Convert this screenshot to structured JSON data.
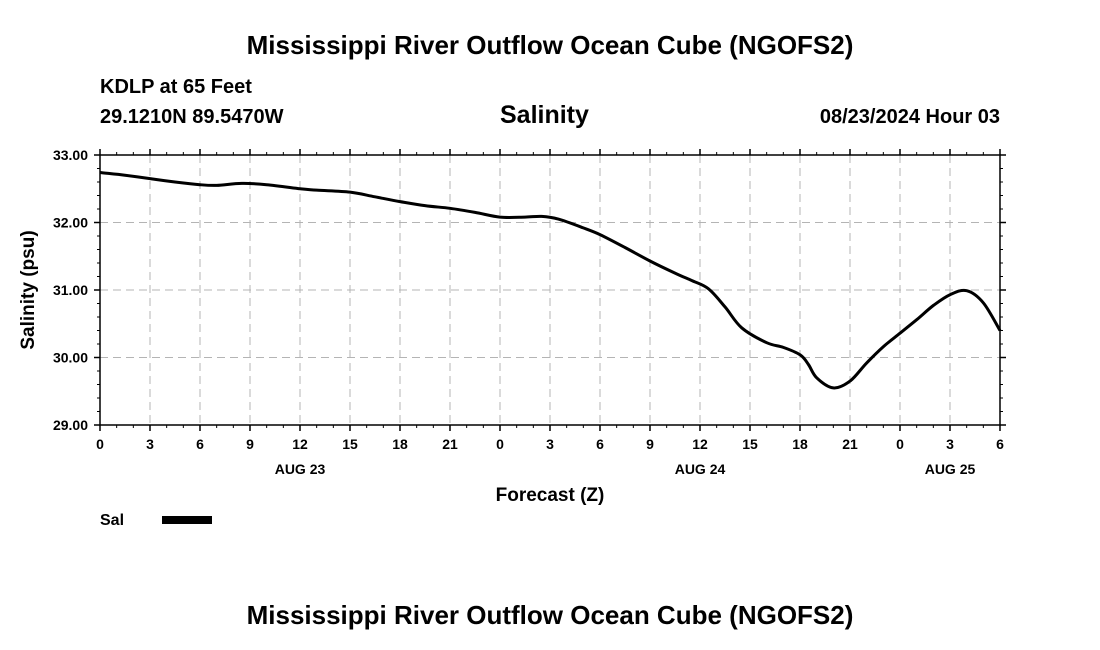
{
  "header": {
    "title": "Mississippi River Outflow Ocean Cube (NGOFS2)",
    "station": "KDLP at 65 Feet",
    "coords": "29.1210N  89.5470W",
    "date": "08/23/2024 Hour 03"
  },
  "chart_data": {
    "type": "line",
    "title": "Salinity",
    "xlabel": "Forecast (Z)",
    "ylabel": "Salinity (psu)",
    "xlim": [
      0,
      54
    ],
    "ylim": [
      29.0,
      33.0
    ],
    "y_ticks": [
      "29.00",
      "30.00",
      "31.00",
      "32.00",
      "33.00"
    ],
    "x_ticks": [
      "0",
      "3",
      "6",
      "9",
      "12",
      "15",
      "18",
      "21",
      "0",
      "3",
      "6",
      "9",
      "12",
      "15",
      "18",
      "21",
      "0",
      "3",
      "6"
    ],
    "date_labels": [
      {
        "label": "AUG 23",
        "hour": 12
      },
      {
        "label": "AUG 24",
        "hour": 36
      },
      {
        "label": "AUG 25",
        "hour": 51
      }
    ],
    "grid": true,
    "legend_position": "bottom-left",
    "series": [
      {
        "name": "Sal",
        "color": "#000000",
        "x": [
          0,
          1.5,
          3,
          4.5,
          6,
          7,
          8.5,
          10,
          12,
          13,
          15,
          16.5,
          18,
          19.5,
          21,
          22.5,
          24,
          25.5,
          26.5,
          27.5,
          29,
          30,
          31.5,
          33,
          34.5,
          35.5,
          36.5,
          37.5,
          38.5,
          40,
          41,
          42,
          42.5,
          43,
          44,
          45,
          46,
          47,
          48,
          49,
          50,
          51,
          52,
          53,
          54
        ],
        "values": [
          32.74,
          32.7,
          32.65,
          32.6,
          32.56,
          32.55,
          32.58,
          32.56,
          32.5,
          32.48,
          32.45,
          32.38,
          32.31,
          32.25,
          32.21,
          32.15,
          32.08,
          32.08,
          32.09,
          32.05,
          31.92,
          31.82,
          31.63,
          31.43,
          31.25,
          31.14,
          31.02,
          30.75,
          30.44,
          30.22,
          30.15,
          30.04,
          29.9,
          29.7,
          29.55,
          29.65,
          29.92,
          30.16,
          30.36,
          30.56,
          30.77,
          30.93,
          30.99,
          30.81,
          30.4
        ]
      }
    ]
  }
}
